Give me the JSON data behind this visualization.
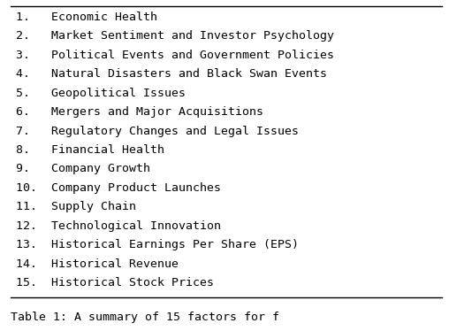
{
  "items": [
    "1.   Economic Health",
    "2.   Market Sentiment and Investor Psychology",
    "3.   Political Events and Government Policies",
    "4.   Natural Disasters and Black Swan Events",
    "5.   Geopolitical Issues",
    "6.   Mergers and Major Acquisitions",
    "7.   Regulatory Changes and Legal Issues",
    "8.   Financial Health",
    "9.   Company Growth",
    "10.  Company Product Launches",
    "11.  Supply Chain",
    "12.  Technological Innovation",
    "13.  Historical Earnings Per Share (EPS)",
    "14.  Historical Revenue",
    "15.  Historical Stock Prices"
  ],
  "font_family": "monospace",
  "font_size": 9.5,
  "background_color": "#ffffff",
  "text_color": "#000000",
  "border_color": "#000000"
}
